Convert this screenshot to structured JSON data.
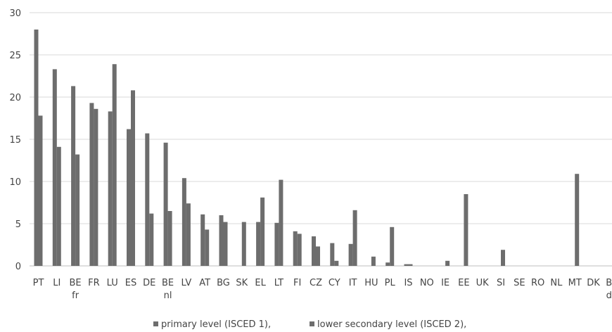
{
  "chart_data": {
    "type": "bar",
    "categories": [
      "PT",
      "LI",
      "BE fr",
      "FR",
      "LU",
      "ES",
      "DE",
      "BE nl",
      "LV",
      "AT",
      "BG",
      "SK",
      "EL",
      "LT",
      "FI",
      "CZ",
      "CY",
      "IT",
      "HU",
      "PL",
      "IS",
      "NO",
      "IE",
      "EE",
      "UK",
      "SI",
      "SE",
      "RO",
      "NL",
      "MT",
      "DK",
      "BE de"
    ],
    "series": [
      {
        "name": "primary level (ISCED 1),",
        "values": [
          28,
          23.3,
          21.3,
          19.3,
          18.3,
          16.2,
          15.7,
          14.6,
          10.4,
          6.1,
          6.0,
          0,
          5.2,
          5.1,
          4.1,
          3.5,
          2.7,
          2.6,
          0,
          0.4,
          0.2,
          0,
          0,
          0,
          0,
          0,
          0,
          0,
          0,
          0,
          0,
          0
        ]
      },
      {
        "name": "lower secondary level (ISCED 2),",
        "values": [
          17.8,
          14.1,
          13.2,
          18.6,
          23.9,
          20.8,
          6.2,
          6.5,
          7.4,
          4.3,
          5.2,
          5.2,
          8.1,
          10.2,
          3.8,
          2.3,
          0.6,
          6.6,
          1.1,
          4.6,
          0.2,
          0,
          0.6,
          8.5,
          0,
          1.9,
          0,
          0,
          0,
          10.9,
          0,
          0
        ]
      }
    ],
    "ylim": [
      0,
      30
    ],
    "yticks": [
      0,
      5,
      10,
      15,
      20,
      25,
      30
    ],
    "grid": true,
    "legend_position": "bottom-center",
    "colors": {
      "primary": "#6d6d6d",
      "lower_secondary": "#6d6d6d",
      "grid": "#d9d9d9",
      "axis": "#bfbfbf",
      "text": "#444444"
    }
  }
}
